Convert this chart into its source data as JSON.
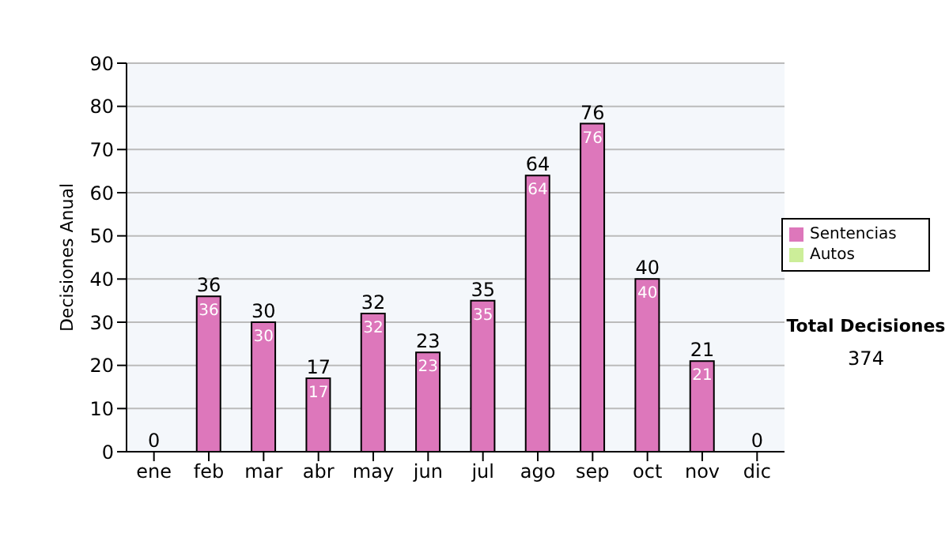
{
  "chart_data": {
    "type": "bar",
    "ylabel": "Decisiones Anual",
    "categories": [
      "ene",
      "feb",
      "mar",
      "abr",
      "may",
      "jun",
      "jul",
      "ago",
      "sep",
      "oct",
      "nov",
      "dic"
    ],
    "series": [
      {
        "name": "Sentencias",
        "color": "#dd77bb",
        "values": [
          0,
          36,
          30,
          17,
          32,
          23,
          35,
          64,
          76,
          40,
          21,
          0
        ],
        "value_labels": [
          null,
          "36",
          "30",
          "17",
          "32",
          "23",
          "35",
          "64",
          "76",
          "40",
          "21",
          null
        ]
      },
      {
        "name": "Autos",
        "color": "#ccee99",
        "values": [
          0,
          0,
          0,
          0,
          0,
          0,
          0,
          0,
          0,
          0,
          0,
          0
        ]
      }
    ],
    "stacked": true,
    "totals": [
      "0",
      "36",
      "30",
      "17",
      "32",
      "23",
      "35",
      "64",
      "76",
      "40",
      "21",
      "0"
    ],
    "ylim": [
      0,
      90
    ],
    "yticks": [
      0,
      10,
      20,
      30,
      40,
      50,
      60,
      70,
      80,
      90
    ],
    "grid": "y",
    "legend": "right",
    "annotations": [
      "Total Decisiones",
      "374"
    ]
  }
}
